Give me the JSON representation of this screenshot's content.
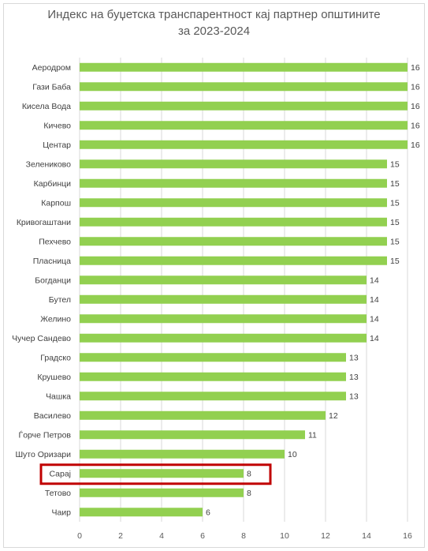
{
  "chart_data": {
    "type": "bar",
    "orientation": "horizontal",
    "title_lines": [
      "Индекс на буџетска транспарентност кај партнер општините",
      "за 2023-2024"
    ],
    "xlabel": "",
    "ylabel": "",
    "xlim": [
      0,
      16
    ],
    "xticks": [
      0,
      2,
      4,
      6,
      8,
      10,
      12,
      14,
      16
    ],
    "grid": "vertical",
    "legend": "none",
    "data_labels": true,
    "bar_color": "#92d050",
    "grid_color": "#d9d9d9",
    "highlight_color": "#c00000",
    "highlighted_category": "Сарај",
    "categories": [
      "Аеродром",
      "Гази Баба",
      "Кисела Вода",
      "Кичево",
      "Центар",
      "Зелениково",
      "Карбинци",
      "Карпош",
      "Кривогаштани",
      "Пехчево",
      "Пласница",
      "Богданци",
      "Бутел",
      "Желино",
      "Чучер Сандево",
      "Градско",
      "Крушево",
      "Чашка",
      "Василево",
      "Ѓорче Петров",
      "Шуто Оризари",
      "Сарај",
      "Тетово",
      "Чаир"
    ],
    "values": [
      16,
      16,
      16,
      16,
      16,
      15,
      15,
      15,
      15,
      15,
      15,
      14,
      14,
      14,
      14,
      13,
      13,
      13,
      12,
      11,
      10,
      8,
      8,
      6
    ]
  }
}
